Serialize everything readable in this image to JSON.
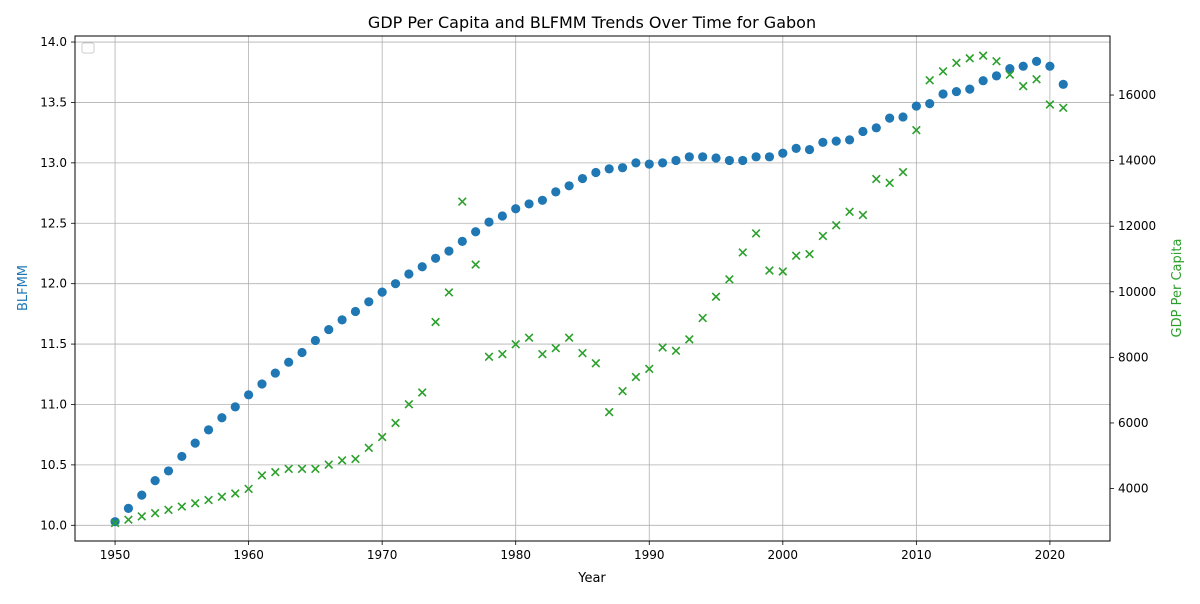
{
  "chart_data": {
    "type": "scatter",
    "title": "GDP Per Capita and BLFMM Trends Over Time for Gabon",
    "xlabel": "Year",
    "ylabel_left": "BLFMM",
    "ylabel_right": "GDP Per Capita",
    "xlim": [
      1947,
      2024.5
    ],
    "ylim_left": [
      9.87,
      14.05
    ],
    "ylim_right": [
      2400,
      17800
    ],
    "x_ticks": [
      1950,
      1960,
      1970,
      1980,
      1990,
      2000,
      2010,
      2020
    ],
    "y_ticks_left": [
      10.0,
      10.5,
      11.0,
      11.5,
      12.0,
      12.5,
      13.0,
      13.5,
      14.0
    ],
    "y_ticks_right": [
      4000,
      6000,
      8000,
      10000,
      12000,
      14000,
      16000
    ],
    "y_tick_labels_left": [
      "10.0",
      "10.5",
      "11.0",
      "11.5",
      "12.0",
      "12.5",
      "13.0",
      "13.5",
      "14.0"
    ],
    "y_tick_labels_right": [
      "4000",
      "6000",
      "8000",
      "10000",
      "12000",
      "14000",
      "16000"
    ],
    "grid": true,
    "legend": "top-left (empty)",
    "colors": {
      "blfmm": "#1f77b4",
      "gdp": "#2ca02c"
    },
    "series": [
      {
        "axis": "left",
        "marker": "circle",
        "x": [
          1950,
          1951,
          1952,
          1953,
          1954,
          1955,
          1956,
          1957,
          1958,
          1959,
          1960,
          1961,
          1962,
          1963,
          1964,
          1965,
          1966,
          1967,
          1968,
          1969,
          1970,
          1971,
          1972,
          1973,
          1974,
          1975,
          1976,
          1977,
          1978,
          1979,
          1980,
          1981,
          1982,
          1983,
          1984,
          1985,
          1986,
          1987,
          1988,
          1989,
          1990,
          1991,
          1992,
          1993,
          1994,
          1995,
          1996,
          1997,
          1998,
          1999,
          2000,
          2001,
          2002,
          2003,
          2004,
          2005,
          2006,
          2007,
          2008,
          2009,
          2010,
          2011,
          2012,
          2013,
          2014,
          2015,
          2016,
          2017,
          2018,
          2019,
          2020,
          2021
        ],
        "y": [
          10.03,
          10.14,
          10.25,
          10.37,
          10.45,
          10.57,
          10.68,
          10.79,
          10.89,
          10.98,
          11.08,
          11.17,
          11.26,
          11.35,
          11.43,
          11.53,
          11.62,
          11.7,
          11.77,
          11.85,
          11.93,
          12.0,
          12.08,
          12.14,
          12.21,
          12.27,
          12.35,
          12.43,
          12.51,
          12.56,
          12.62,
          12.66,
          12.69,
          12.76,
          12.81,
          12.87,
          12.92,
          12.95,
          12.96,
          13.0,
          12.99,
          13.0,
          13.02,
          13.05,
          13.05,
          13.04,
          13.02,
          13.02,
          13.05,
          13.05,
          13.08,
          13.12,
          13.11,
          13.17,
          13.18,
          13.19,
          13.26,
          13.29,
          13.37,
          13.38,
          13.47,
          13.49,
          13.57,
          13.59,
          13.61,
          13.68,
          13.72,
          13.78,
          13.8,
          13.84,
          13.8,
          13.65
        ]
      },
      {
        "axis": "right",
        "marker": "x",
        "x": [
          1950,
          1951,
          1952,
          1953,
          1954,
          1955,
          1956,
          1957,
          1958,
          1959,
          1960,
          1961,
          1962,
          1963,
          1964,
          1965,
          1966,
          1967,
          1968,
          1969,
          1970,
          1971,
          1972,
          1973,
          1974,
          1975,
          1976,
          1977,
          1978,
          1979,
          1980,
          1981,
          1982,
          1983,
          1984,
          1985,
          1986,
          1987,
          1988,
          1989,
          1990,
          1991,
          1992,
          1993,
          1994,
          1995,
          1996,
          1997,
          1998,
          1999,
          2000,
          2001,
          2002,
          2003,
          2004,
          2005,
          2006,
          2007,
          2008,
          2009,
          2010,
          2011,
          2012,
          2013,
          2014,
          2015,
          2016,
          2017,
          2018,
          2019,
          2020,
          2021
        ],
        "y": [
          2950,
          3050,
          3150,
          3250,
          3350,
          3450,
          3550,
          3650,
          3750,
          3850,
          3990,
          4400,
          4500,
          4600,
          4600,
          4600,
          4730,
          4860,
          4900,
          5240,
          5570,
          6000,
          6570,
          6930,
          9080,
          9980,
          12750,
          10830,
          8020,
          8100,
          8400,
          8600,
          8100,
          8280,
          8600,
          8130,
          7820,
          6330,
          6970,
          7400,
          7650,
          8300,
          8200,
          8550,
          9200,
          9850,
          10380,
          11200,
          11780,
          10650,
          10620,
          11100,
          11150,
          11700,
          12030,
          12440,
          12340,
          13440,
          13320,
          13650,
          14930,
          16450,
          16720,
          16980,
          17120,
          17200,
          17030,
          16620,
          16270,
          16480,
          15710,
          15610
        ]
      }
    ]
  }
}
